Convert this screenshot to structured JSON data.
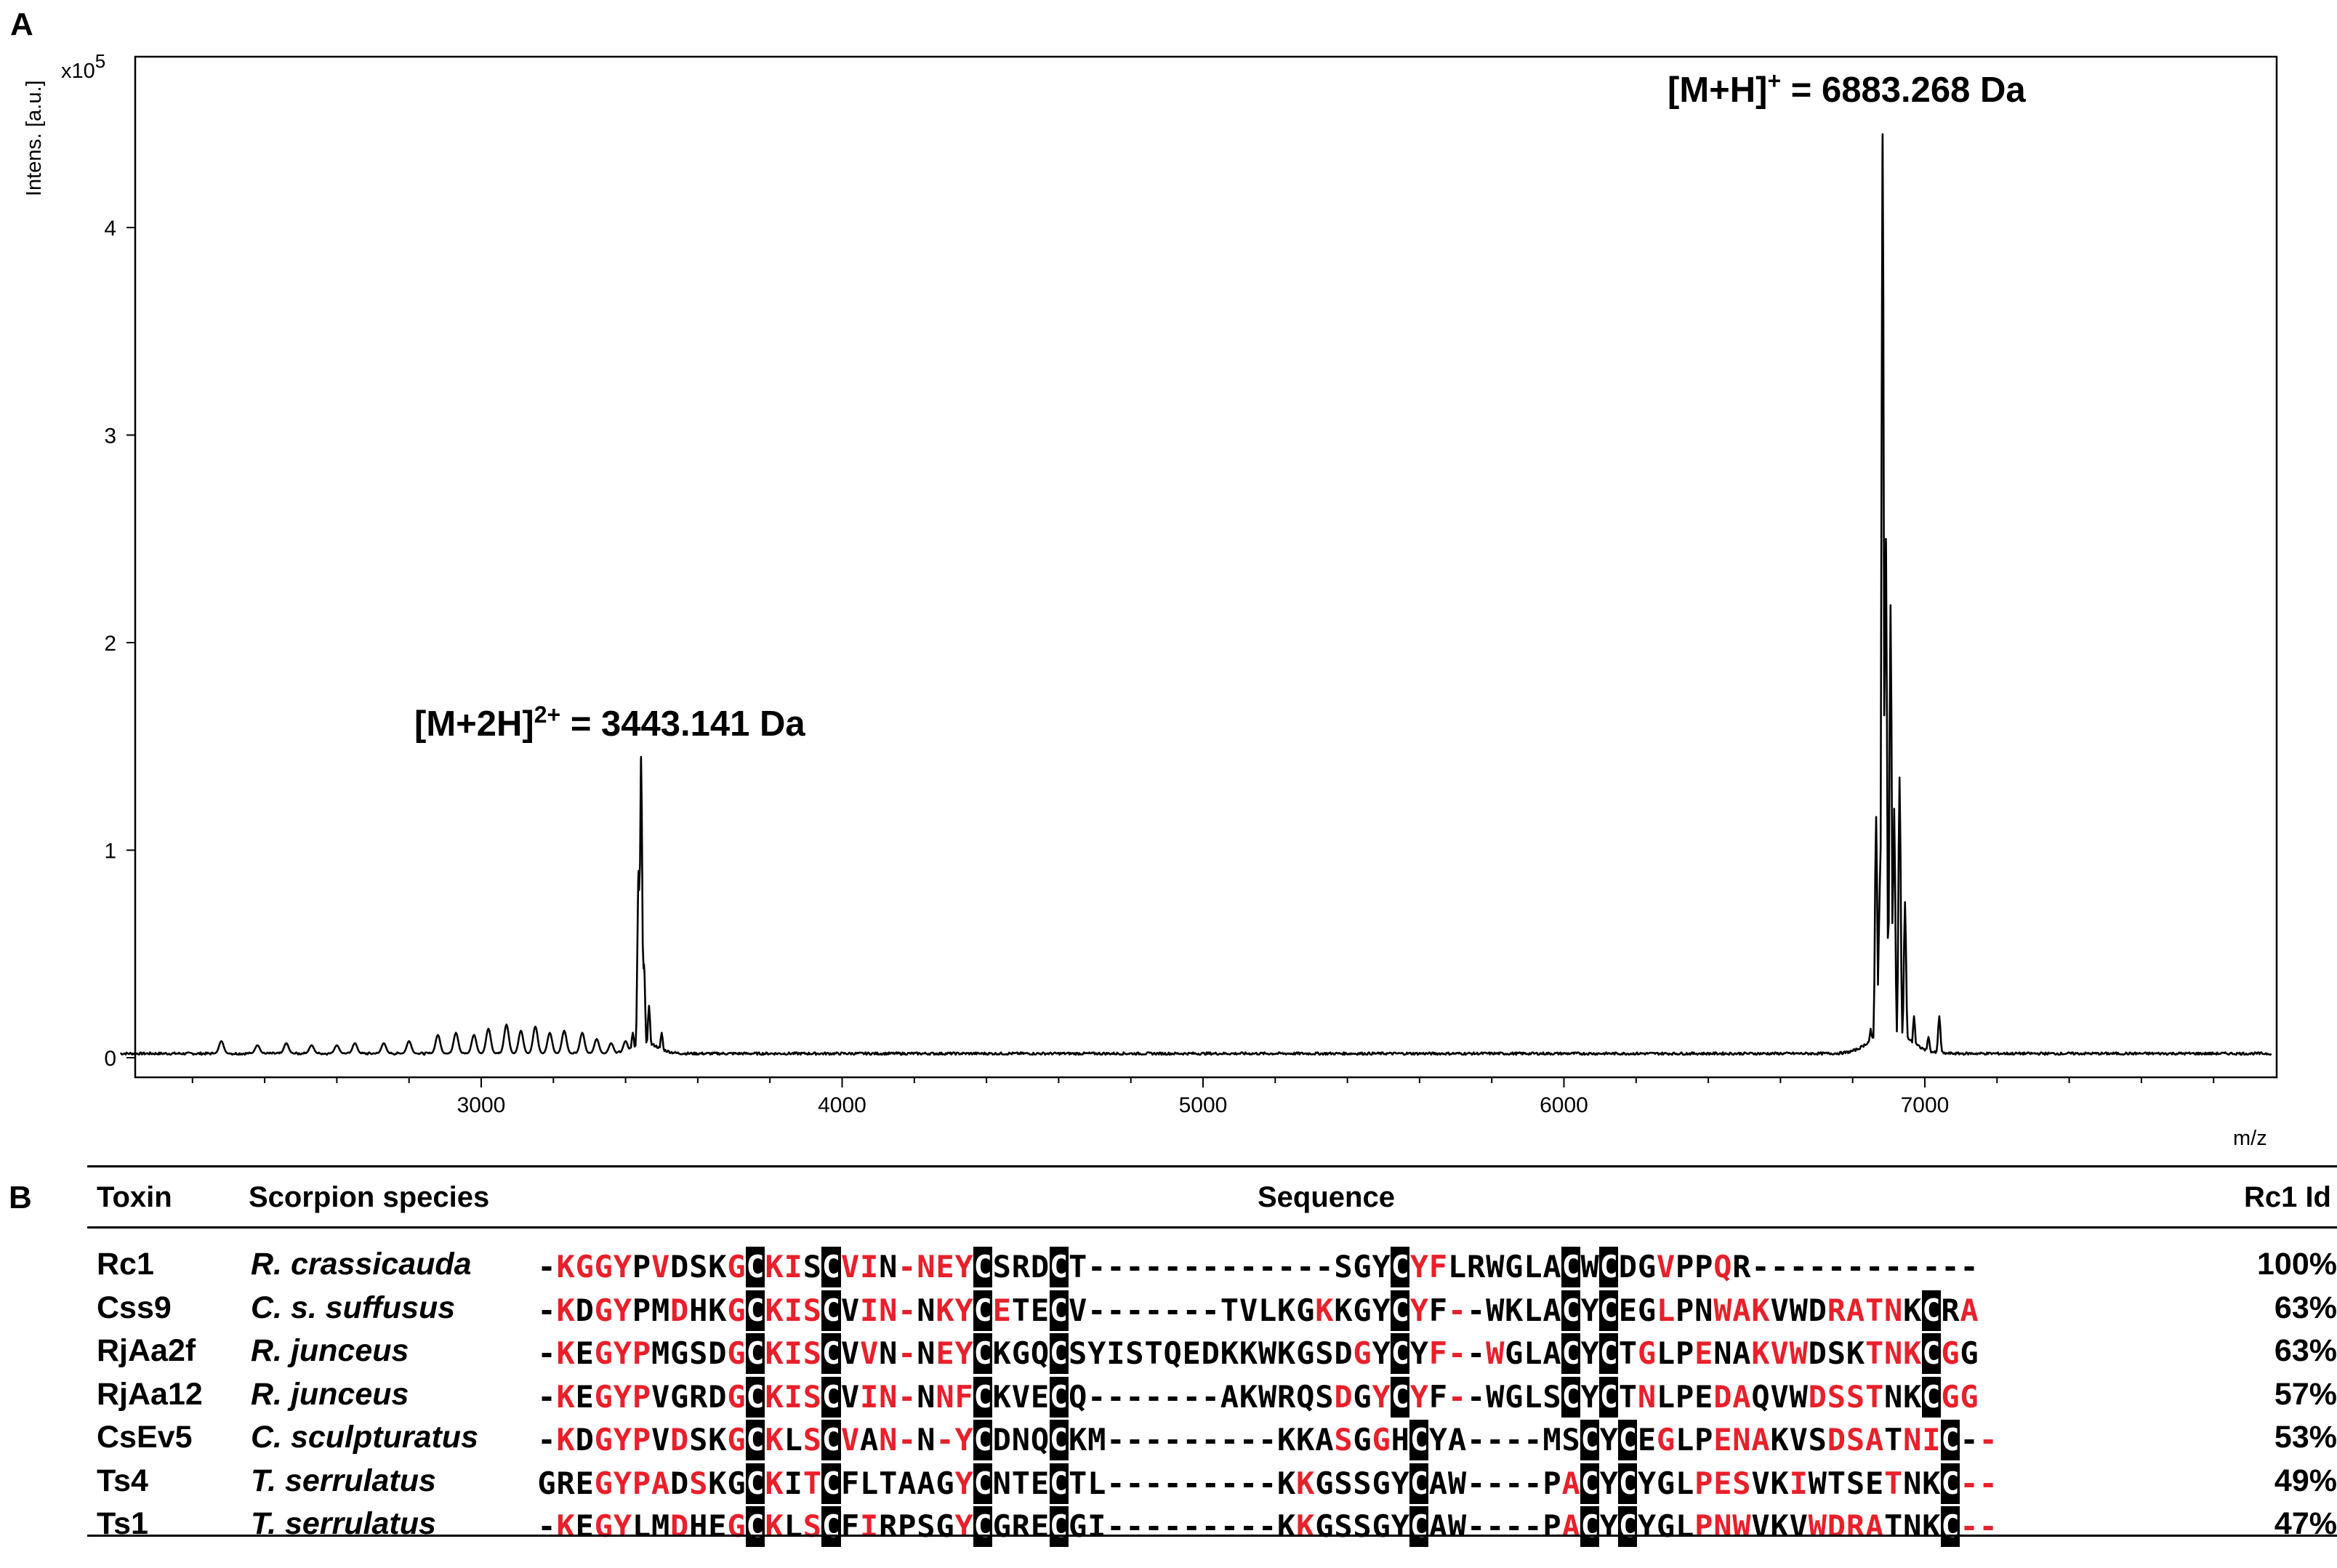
{
  "panel_a": {
    "letter": "A",
    "chart_data": {
      "type": "line",
      "xlabel": "m/z",
      "ylabel": "Intens. [a.u.]",
      "y_multiplier": "x10",
      "y_multiplier_exp": "5",
      "xlim": [
        2000,
        8000
      ],
      "ylim": [
        0,
        4.8
      ],
      "x_ticks": [
        3000,
        4000,
        5000,
        6000,
        7000
      ],
      "y_ticks": [
        0,
        1,
        2,
        3,
        4
      ],
      "grid": false,
      "annotations": [
        {
          "text": "[M+2H]",
          "sup": "2+",
          "rest": " = 3443.141 Da",
          "x": 3443.141,
          "y": 1.45
        },
        {
          "text": "[M+H]",
          "sup": "+",
          "rest": " = 6883.268 Da",
          "x": 6883.268,
          "y": 4.45
        }
      ],
      "series": [
        {
          "baseline": 0.02,
          "peaks": [
            {
              "x": 2280,
              "y": 0.08
            },
            {
              "x": 2380,
              "y": 0.06
            },
            {
              "x": 2460,
              "y": 0.07
            },
            {
              "x": 2530,
              "y": 0.06
            },
            {
              "x": 2600,
              "y": 0.06
            },
            {
              "x": 2650,
              "y": 0.07
            },
            {
              "x": 2730,
              "y": 0.07
            },
            {
              "x": 2800,
              "y": 0.08
            },
            {
              "x": 2880,
              "y": 0.11
            },
            {
              "x": 2930,
              "y": 0.12
            },
            {
              "x": 2980,
              "y": 0.11
            },
            {
              "x": 3020,
              "y": 0.14
            },
            {
              "x": 3070,
              "y": 0.16
            },
            {
              "x": 3110,
              "y": 0.13
            },
            {
              "x": 3150,
              "y": 0.15
            },
            {
              "x": 3190,
              "y": 0.12
            },
            {
              "x": 3230,
              "y": 0.13
            },
            {
              "x": 3280,
              "y": 0.12
            },
            {
              "x": 3320,
              "y": 0.09
            },
            {
              "x": 3360,
              "y": 0.07
            },
            {
              "x": 3400,
              "y": 0.08
            },
            {
              "x": 3420,
              "y": 0.12
            },
            {
              "x": 3436,
              "y": 0.9
            },
            {
              "x": 3443,
              "y": 1.45
            },
            {
              "x": 3451,
              "y": 0.45
            },
            {
              "x": 3465,
              "y": 0.25
            },
            {
              "x": 3500,
              "y": 0.12
            },
            {
              "x": 6850,
              "y": 0.14
            },
            {
              "x": 6865,
              "y": 1.16
            },
            {
              "x": 6875,
              "y": 0.8
            },
            {
              "x": 6883,
              "y": 4.45
            },
            {
              "x": 6892,
              "y": 2.5
            },
            {
              "x": 6905,
              "y": 2.18
            },
            {
              "x": 6915,
              "y": 1.2
            },
            {
              "x": 6930,
              "y": 1.35
            },
            {
              "x": 6945,
              "y": 0.75
            },
            {
              "x": 6970,
              "y": 0.2
            },
            {
              "x": 7010,
              "y": 0.1
            },
            {
              "x": 7040,
              "y": 0.2
            }
          ]
        }
      ]
    }
  },
  "panel_b": {
    "letter": "B",
    "headers": {
      "toxin": "Toxin",
      "species": "Scorpion species",
      "sequence": "Sequence",
      "identity": "Rc1 Id"
    },
    "rows": [
      {
        "toxin": "Rc1",
        "species": "R. crassicauda",
        "id": "100%",
        "seq": "-KGGYPVDSKGCKISCVIN-NEYCSRDCT-------------SGYCYFLRWGLACWCDGVPPQR------------",
        "red": "011110100011110111011110000000000000000000000011000000000001001000000000000000000000"
      },
      {
        "toxin": "Css9",
        "species": "C. s. suffusus",
        "id": "63%",
        "seq": "-KDGYPMDHKGCKISCVIN-NKYCETECV-------TVLKGKKGYCYF--WKLACYCEGLPNWAKVWDRATNKCRA",
        "red": "0101100100101111011101111000000000000000010001101000000010010011100011110001110000"
      },
      {
        "toxin": "RjAa2f",
        "species": "R. junceus",
        "id": "63%",
        "seq": "-KEGYPMGSDGCKISCVVN-NEYCKGQCSYISTQEDKKWKGSDGYCYF--WGLACYCTGLPENAKVWDSKTNKCGG",
        "red": "0101110000101111010101110000000000000000000101011010000000100100111000111110111000"
      },
      {
        "toxin": "RjAa12",
        "species": "R. junceus",
        "id": "57%",
        "seq": "-KEGYPVGRDGCKISCVIN-NNFCKVECQ-------AKWRQSDGYCYF--WGLSCYCTNLPEDAQVWDSSTNKCGG",
        "red": "0101110000101111011101100000000000000000001011101000000000100011000111100111000"
      },
      {
        "toxin": "CsEv5",
        "species": "C. sculpturatus",
        "id": "53%",
        "seq": "-KDGYPVDSKGCKLSCVAN-N-YCDNQCKM---------KKASGGHCYA----MSCYCEGLPENAKVSDSATNIC--",
        "red": "01011101001010101011011100000000000000000010100000000000000100111000111011101100"
      },
      {
        "toxin": "Ts4",
        "species": "T. serrulatus",
        "id": "49%",
        "seq": "GREGYPADSKGCKITCFLTAAGYCNTECTL---------KKGSSGYCAW----PACYCYGLPESVKIWTSETNKC--",
        "red": "00011110100010100000001000000000000000001000000000000011000001110010000100011100"
      },
      {
        "toxin": "Ts1",
        "species": "T. serrulatus",
        "id": "47%",
        "seq": "-KEGYLMDHEGCKLSCFIRPSGYCGRECGI---------KKGSSGYCAW----PACYCYGLPNWVKVWDRATNKC--",
        "red": "010110010010101001000010000000000000000010000000000000110000011100011110000111100"
      }
    ]
  }
}
